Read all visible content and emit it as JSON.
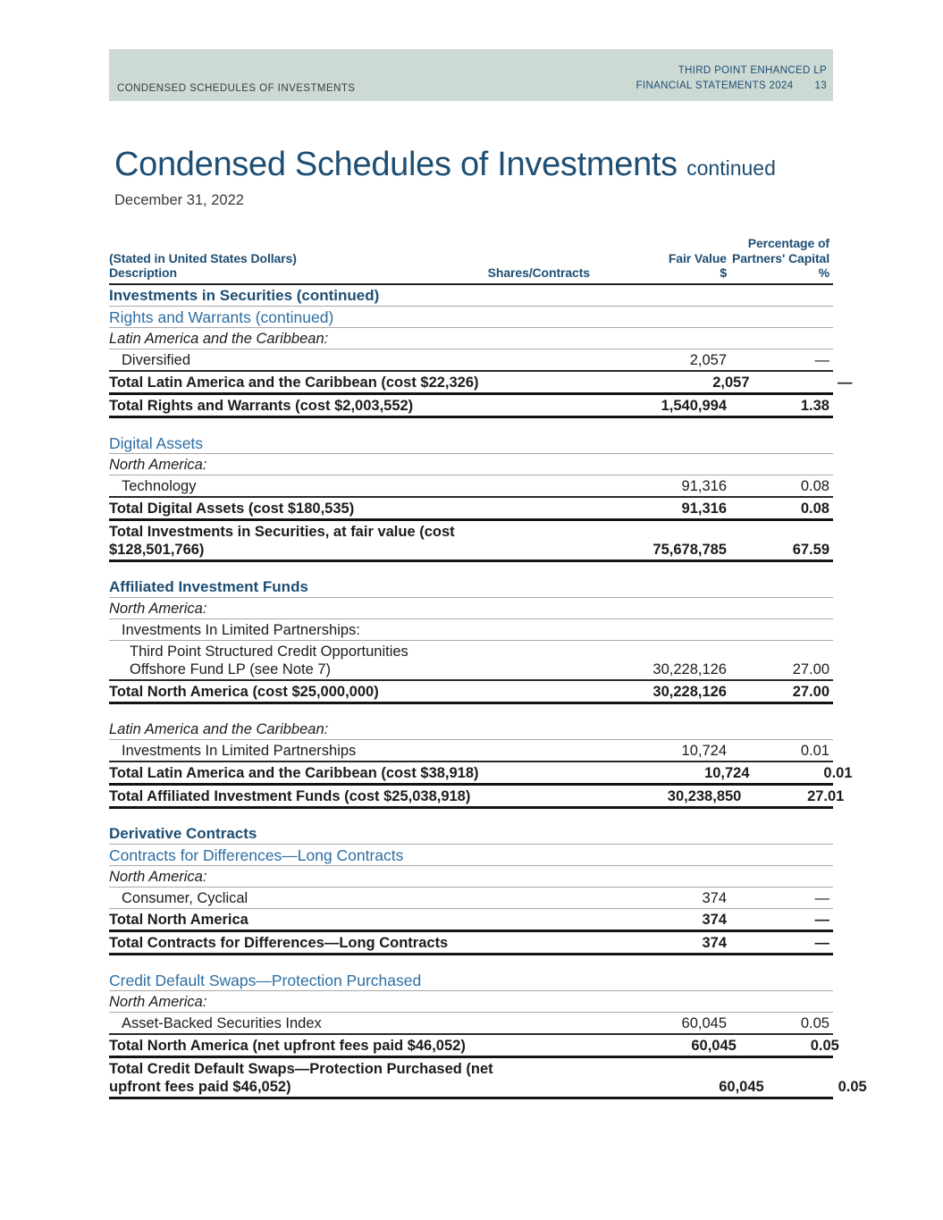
{
  "colors": {
    "navy": "#1d4e74",
    "blue": "#2d6ea3",
    "band": "#cdd9d3",
    "text": "#1c1c1a"
  },
  "page_header": {
    "left": "CONDENSED SCHEDULES OF INVESTMENTS",
    "right_line1": "THIRD POINT ENHANCED LP",
    "right_line2": "FINANCIAL STATEMENTS 2024",
    "page_number": "13"
  },
  "title": {
    "main": "Condensed Schedules of Investments",
    "suffix": "continued",
    "date": "December 31, 2022"
  },
  "table": {
    "header": {
      "stated": "(Stated in United States Dollars)",
      "col_description": "Description",
      "col_shares": "Shares/Contracts",
      "col_fair_value_line1": "Fair Value",
      "col_fair_value_line2": "$",
      "col_pct_line1": "Percentage of",
      "col_pct_line2": "Partners' Capital",
      "col_pct_line3": "%"
    },
    "rows": [
      {
        "type": "section",
        "label": "Investments in Securities (continued)",
        "shares": "",
        "fair": "",
        "pct": "",
        "rule": "thin",
        "indent": 0
      },
      {
        "type": "subhead",
        "label": "Rights and Warrants (continued)",
        "shares": "",
        "fair": "",
        "pct": "",
        "rule": "thin",
        "indent": 0
      },
      {
        "type": "region",
        "label": "Latin America and the Caribbean:",
        "shares": "",
        "fair": "",
        "pct": "",
        "rule": "thin",
        "indent": 0
      },
      {
        "type": "detail",
        "label": "Diversified",
        "shares": "",
        "fair": "2,057",
        "pct": "—",
        "rule": "med",
        "indent": 1
      },
      {
        "type": "total",
        "label": "Total Latin America and the Caribbean (cost $22,326)",
        "shares": "",
        "fair": "2,057",
        "pct": "—",
        "rule": "heavy",
        "indent": 0
      },
      {
        "type": "total",
        "label": "Total Rights and Warrants (cost $2,003,552)",
        "shares": "",
        "fair": "1,540,994",
        "pct": "1.38",
        "rule": "heavy",
        "indent": 0
      },
      {
        "type": "spacer"
      },
      {
        "type": "subhead",
        "label": "Digital Assets",
        "shares": "",
        "fair": "",
        "pct": "",
        "rule": "thin",
        "indent": 0
      },
      {
        "type": "region",
        "label": "North America:",
        "shares": "",
        "fair": "",
        "pct": "",
        "rule": "thin",
        "indent": 0
      },
      {
        "type": "detail",
        "label": "Technology",
        "shares": "",
        "fair": "91,316",
        "pct": "0.08",
        "rule": "med",
        "indent": 1
      },
      {
        "type": "total",
        "label": "Total Digital Assets (cost $180,535)",
        "shares": "",
        "fair": "91,316",
        "pct": "0.08",
        "rule": "heavy",
        "indent": 0
      },
      {
        "type": "total",
        "label": "Total Investments in Securities, at fair value (cost\n$128,501,766)",
        "shares": "",
        "fair": "75,678,785",
        "pct": "67.59",
        "rule": "heavy",
        "indent": 0
      },
      {
        "type": "spacer"
      },
      {
        "type": "section",
        "label": "Affiliated Investment Funds",
        "shares": "",
        "fair": "",
        "pct": "",
        "rule": "thin",
        "indent": 0
      },
      {
        "type": "region",
        "label": "North America:",
        "shares": "",
        "fair": "",
        "pct": "",
        "rule": "thin",
        "indent": 0
      },
      {
        "type": "plain",
        "label": "Investments In Limited Partnerships:",
        "shares": "",
        "fair": "",
        "pct": "",
        "rule": "thin",
        "indent": 1
      },
      {
        "type": "detail",
        "label": "Third Point Structured Credit Opportunities\nOffshore Fund LP (see Note 7)",
        "shares": "",
        "fair": "30,228,126",
        "pct": "27.00",
        "rule": "med",
        "indent": 2
      },
      {
        "type": "total",
        "label": "Total North America (cost $25,000,000)",
        "shares": "",
        "fair": "30,228,126",
        "pct": "27.00",
        "rule": "heavy",
        "indent": 0
      },
      {
        "type": "spacer"
      },
      {
        "type": "region",
        "label": "Latin America and the Caribbean:",
        "shares": "",
        "fair": "",
        "pct": "",
        "rule": "thin",
        "indent": 0
      },
      {
        "type": "detail",
        "label": "Investments In Limited Partnerships",
        "shares": "",
        "fair": "10,724",
        "pct": "0.01",
        "rule": "med",
        "indent": 1
      },
      {
        "type": "total",
        "label": "Total Latin America and the Caribbean (cost $38,918)",
        "shares": "",
        "fair": "10,724",
        "pct": "0.01",
        "rule": "heavy",
        "indent": 0
      },
      {
        "type": "total",
        "label": "Total Affiliated Investment Funds (cost $25,038,918)",
        "shares": "",
        "fair": "30,238,850",
        "pct": "27.01",
        "rule": "heavy",
        "indent": 0
      },
      {
        "type": "spacer"
      },
      {
        "type": "section",
        "label": "Derivative Contracts",
        "shares": "",
        "fair": "",
        "pct": "",
        "rule": "thin",
        "indent": 0
      },
      {
        "type": "subhead",
        "label": "Contracts for Differences—Long Contracts",
        "shares": "",
        "fair": "",
        "pct": "",
        "rule": "thin",
        "indent": 0
      },
      {
        "type": "region",
        "label": "North America:",
        "shares": "",
        "fair": "",
        "pct": "",
        "rule": "thin",
        "indent": 0
      },
      {
        "type": "detail",
        "label": "Consumer, Cyclical",
        "shares": "",
        "fair": "374",
        "pct": "—",
        "rule": "thin",
        "indent": 1
      },
      {
        "type": "total",
        "label": "Total North America",
        "shares": "",
        "fair": "374",
        "pct": "—",
        "rule": "heavy",
        "indent": 0
      },
      {
        "type": "total",
        "label": "Total Contracts for Differences—Long Contracts",
        "shares": "",
        "fair": "374",
        "pct": "—",
        "rule": "heavy",
        "indent": 0
      },
      {
        "type": "spacer"
      },
      {
        "type": "subhead",
        "label": "Credit Default Swaps—Protection Purchased",
        "shares": "",
        "fair": "",
        "pct": "",
        "rule": "thin",
        "indent": 0
      },
      {
        "type": "region",
        "label": "North America:",
        "shares": "",
        "fair": "",
        "pct": "",
        "rule": "thin",
        "indent": 0
      },
      {
        "type": "detail",
        "label": "Asset-Backed Securities Index",
        "shares": "",
        "fair": "60,045",
        "pct": "0.05",
        "rule": "med",
        "indent": 1
      },
      {
        "type": "total",
        "label": "Total North America (net upfront fees paid $46,052)",
        "shares": "",
        "fair": "60,045",
        "pct": "0.05",
        "rule": "heavy",
        "indent": 0
      },
      {
        "type": "total",
        "label": "Total Credit Default Swaps—Protection Purchased (net\nupfront fees paid $46,052)",
        "shares": "",
        "fair": "60,045",
        "pct": "0.05",
        "rule": "heavy",
        "indent": 0
      }
    ]
  }
}
